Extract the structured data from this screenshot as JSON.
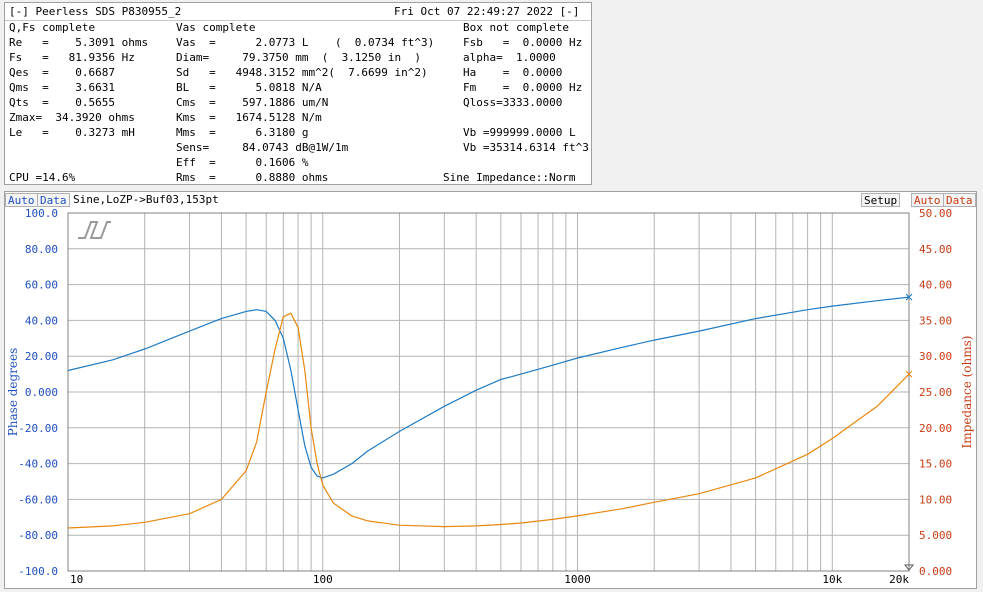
{
  "header": {
    "title": "[-] Peerless SDS P830955_2",
    "datetime": "Fri Oct 07 22:49:27 2022 [-]"
  },
  "sections": {
    "qfs": "Q,Fs complete",
    "vas": "Vas complete",
    "box": "Box not complete"
  },
  "col1": [
    "Re   =    5.3091 ohms",
    "Fs   =   81.9356 Hz",
    "Qes  =    0.6687",
    "Qms  =    3.6631",
    "Qts  =    0.5655",
    "Zmax=  34.3920 ohms",
    "Le   =    0.3273 mH"
  ],
  "col2": [
    "Vas  =      2.0773 L    (  0.0734 ft^3)",
    "Diam=     79.3750 mm  (  3.1250 in  )",
    "Sd   =   4948.3152 mm^2(  7.6699 in^2)",
    "BL   =      5.0818 N/A",
    "Cms  =    597.1886 um/N",
    "Kms  =   1674.5128 N/m",
    "Mms  =      6.3180 g",
    "Sens=     84.0743 dB@1W/1m",
    "Eff  =      0.1606 %",
    "Rms  =      0.8880 ohms"
  ],
  "col3": [
    "Fsb   =  0.0000 Hz",
    "alpha=  1.0000",
    "Ha    =  0.0000",
    "Fm    =  0.0000 Hz",
    "Qloss=3333.0000",
    "",
    "Vb =999999.0000 L",
    "Vb =35314.6314 ft^3"
  ],
  "cpu": "CPU =14.6%",
  "mode": "Sine Impedance::Norm",
  "graph": {
    "auto_left": "Auto",
    "data_left": "Data",
    "title": "Sine,LoZP->Buf03,153pt",
    "setup": "Setup",
    "auto_right": "Auto",
    "data_right": "Data"
  },
  "colors": {
    "phase": "#1f7bc4",
    "impedance": "#e8880f",
    "phase_axis": "#1f4fbf",
    "imp_axis": "#c83c14"
  },
  "chart_data": {
    "type": "line",
    "xscale": "log",
    "xlim": [
      10,
      20000
    ],
    "x_tick_labels": [
      "10",
      "100",
      "1000",
      "10k",
      "20k"
    ],
    "x_tick_values": [
      10,
      100,
      1000,
      10000,
      20000
    ],
    "ylabel_left": "Phase degrees",
    "ylabel_right": "Impedance (ohms)",
    "ylim_left": [
      -100,
      100
    ],
    "ylim_right": [
      0,
      50
    ],
    "y_left_ticks": [
      "100.0",
      "80.00",
      "60.00",
      "40.00",
      "20.00",
      "0.000",
      "-20.00",
      "-40.00",
      "-60.00",
      "-80.00",
      "-100.0"
    ],
    "y_right_ticks": [
      "50.00",
      "45.00",
      "40.00",
      "35.00",
      "30.00",
      "25.00",
      "20.00",
      "15.00",
      "10.00",
      "5.000",
      "0.000"
    ],
    "series": [
      {
        "axis": "left",
        "x": [
          10,
          15,
          20,
          30,
          40,
          50,
          55,
          60,
          65,
          70,
          75,
          80,
          85,
          90,
          95,
          100,
          110,
          130,
          150,
          200,
          300,
          400,
          500,
          600,
          800,
          1000,
          1500,
          2000,
          3000,
          5000,
          8000,
          10000,
          15000,
          20000
        ],
        "y": [
          12,
          18,
          24,
          34,
          41,
          45,
          46,
          45,
          40,
          30,
          12,
          -10,
          -30,
          -42,
          -47,
          -48,
          -46,
          -40,
          -33,
          -22,
          -8,
          1,
          7,
          10,
          15,
          19,
          25,
          29,
          34,
          41,
          46,
          48,
          51,
          53
        ]
      },
      {
        "axis": "right",
        "x": [
          10,
          15,
          20,
          30,
          40,
          50,
          55,
          60,
          65,
          70,
          75,
          80,
          85,
          90,
          95,
          100,
          110,
          130,
          150,
          200,
          300,
          400,
          500,
          600,
          800,
          1000,
          1500,
          2000,
          3000,
          5000,
          8000,
          10000,
          15000,
          20000
        ],
        "y": [
          6.0,
          6.3,
          6.8,
          8.0,
          10.0,
          14.0,
          18.0,
          25.0,
          31.0,
          35.5,
          36.0,
          34.0,
          28.0,
          20.0,
          15.0,
          12.0,
          9.5,
          7.7,
          7.0,
          6.4,
          6.2,
          6.3,
          6.5,
          6.7,
          7.2,
          7.7,
          8.7,
          9.6,
          10.8,
          13.0,
          16.3,
          18.5,
          23.0,
          27.5
        ]
      }
    ]
  }
}
